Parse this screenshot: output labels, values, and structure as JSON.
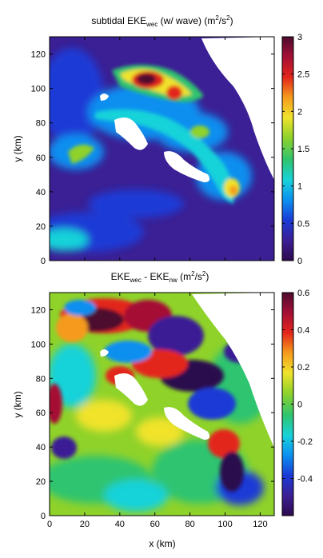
{
  "chart_data": [
    {
      "type": "heatmap",
      "title": {
        "base": "subtidal EKE",
        "sub": "wec",
        "rest": " (w/ wave) (m",
        "sup": "2",
        "mid": "/s",
        "sup2": "2",
        "end": ")"
      },
      "ylabel": "y (km)",
      "xlim": [
        0,
        128
      ],
      "ylim": [
        0,
        130
      ],
      "yticks": [
        0,
        20,
        40,
        60,
        80,
        100,
        120
      ],
      "colorbar": {
        "range": [
          0,
          3
        ],
        "ticks": [
          0,
          0.5,
          1,
          1.5,
          2,
          2.5,
          3
        ],
        "tick_labels": [
          "0",
          "0.5",
          "1",
          "1.5",
          "2",
          "2.5",
          "3"
        ]
      },
      "colormap": [
        "#2c0a4e",
        "#3b1f94",
        "#1a3ad6",
        "#0c8ff0",
        "#17d2d9",
        "#2fc46f",
        "#8fd22a",
        "#f0e32b",
        "#f59a1d",
        "#e3251c",
        "#a50f35",
        "#4e0a2f"
      ],
      "features": [
        {
          "name": "high-eke-core",
          "x": 48,
          "y": 104,
          "value": 3.0
        },
        {
          "name": "high-eke-east",
          "x": 70,
          "y": 97,
          "value": 2.7
        },
        {
          "name": "eke-band-south",
          "x": 103,
          "y": 40,
          "value": 1.8
        },
        {
          "name": "eke-west-shelf",
          "x": 15,
          "y": 62,
          "value": 1.4
        }
      ]
    },
    {
      "type": "heatmap",
      "title": {
        "a": "EKE",
        "a_sub": "wec",
        "b": " - EKE",
        "b_sub": "nw",
        "rest": " (m",
        "sup": "2",
        "mid": "/s",
        "sup2": "2",
        "end": ")"
      },
      "xlabel": "x (km)",
      "ylabel": "y (km)",
      "xlim": [
        0,
        128
      ],
      "ylim": [
        0,
        130
      ],
      "xticks": [
        0,
        20,
        40,
        60,
        80,
        100,
        120
      ],
      "yticks": [
        0,
        20,
        40,
        60,
        80,
        100,
        120
      ],
      "colorbar": {
        "range": [
          -0.6,
          0.6
        ],
        "ticks": [
          -0.4,
          -0.2,
          0,
          0.2,
          0.4,
          0.6
        ],
        "tick_labels": [
          "-0.4",
          "-0.2",
          "0",
          "0.2",
          "0.4",
          "0.6"
        ]
      },
      "colormap": [
        "#2c0a4e",
        "#3b1f94",
        "#1a3ad6",
        "#0c8ff0",
        "#17d2d9",
        "#2fc46f",
        "#8fd22a",
        "#f0e32b",
        "#f59a1d",
        "#e3251c",
        "#a50f35",
        "#4e0a2f"
      ],
      "features": [
        {
          "name": "positive-diff-north",
          "x": 40,
          "y": 112,
          "value": 0.6
        },
        {
          "name": "negative-diff-east",
          "x": 80,
          "y": 95,
          "value": -0.6
        },
        {
          "name": "positive-diff-west",
          "x": 5,
          "y": 60,
          "value": 0.6
        },
        {
          "name": "negative-diff-south",
          "x": 100,
          "y": 30,
          "value": -0.5
        }
      ]
    }
  ]
}
